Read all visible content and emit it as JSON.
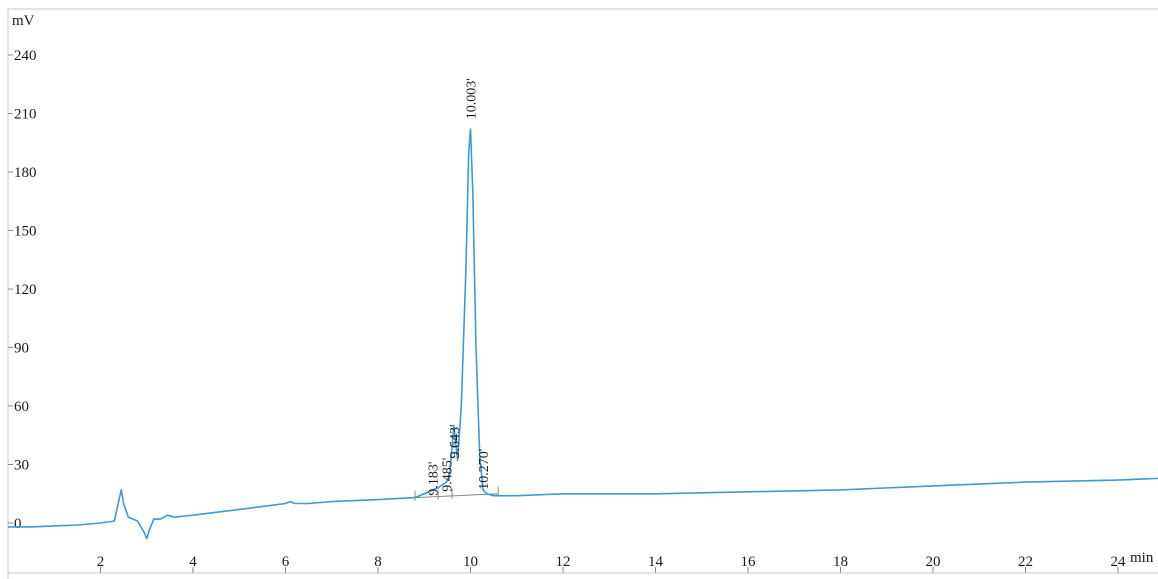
{
  "chart_data": {
    "type": "line",
    "y_unit": "mV",
    "x_unit": "min",
    "xlim": [
      0,
      25
    ],
    "ylim": [
      -10,
      250
    ],
    "y_ticks": [
      0,
      30,
      60,
      90,
      120,
      150,
      180,
      210,
      240
    ],
    "y_tick_labels": [
      "0",
      "30",
      "60",
      "90",
      "120",
      "150",
      "180",
      "210",
      "240"
    ],
    "x_ticks": [
      2,
      4,
      6,
      8,
      10,
      12,
      14,
      16,
      18,
      20,
      22,
      24
    ],
    "x_tick_labels": [
      "2",
      "4",
      "6",
      "8",
      "10",
      "12",
      "14",
      "16",
      "18",
      "20",
      "22",
      "24"
    ],
    "grid": false,
    "series_color": "#3a9bd5",
    "baseline_color": "#8a8a8a",
    "series": [
      {
        "x": [
          0.0,
          0.5,
          1.0,
          1.5,
          2.0,
          2.3,
          2.4,
          2.45,
          2.5,
          2.6,
          2.8,
          2.95,
          3.0,
          3.05,
          3.15,
          3.3,
          3.45,
          3.6,
          4.0,
          5.0,
          6.0,
          6.1,
          6.2,
          6.5,
          7.0,
          8.0,
          8.8,
          9.0,
          9.18,
          9.3,
          9.48,
          9.55,
          9.64,
          9.72,
          9.8,
          9.9,
          9.96,
          10.0,
          10.05,
          10.12,
          10.2,
          10.27,
          10.35,
          10.5,
          10.7,
          11.0,
          12.0,
          14.0,
          16.0,
          18.0,
          20.0,
          22.0,
          24.0,
          25.0
        ],
        "y": [
          -2,
          -2,
          -1.5,
          -1,
          0,
          1,
          12,
          17,
          10,
          3,
          1,
          -5,
          -8,
          -4,
          2,
          2,
          4,
          3,
          4,
          7,
          10,
          11,
          10,
          10,
          11,
          12,
          13,
          15,
          17,
          18,
          21,
          25,
          50,
          32,
          60,
          130,
          190,
          202,
          170,
          90,
          35,
          17,
          15,
          14,
          14,
          14,
          15,
          15,
          16,
          17,
          19,
          21,
          22,
          23
        ]
      }
    ],
    "peak_labels": [
      "9.183'",
      "9.485'",
      "9.643'",
      "10.003'",
      "10.270'"
    ],
    "peak_times": [
      9.183,
      9.485,
      9.643,
      10.003,
      10.27
    ],
    "peak_label_y": [
      12,
      14,
      31,
      205,
      15
    ],
    "integration_baseline": {
      "x": [
        8.8,
        10.6
      ],
      "y": [
        13,
        15
      ]
    },
    "integration_markers_x": [
      8.8,
      9.3,
      9.6,
      10.6
    ]
  }
}
